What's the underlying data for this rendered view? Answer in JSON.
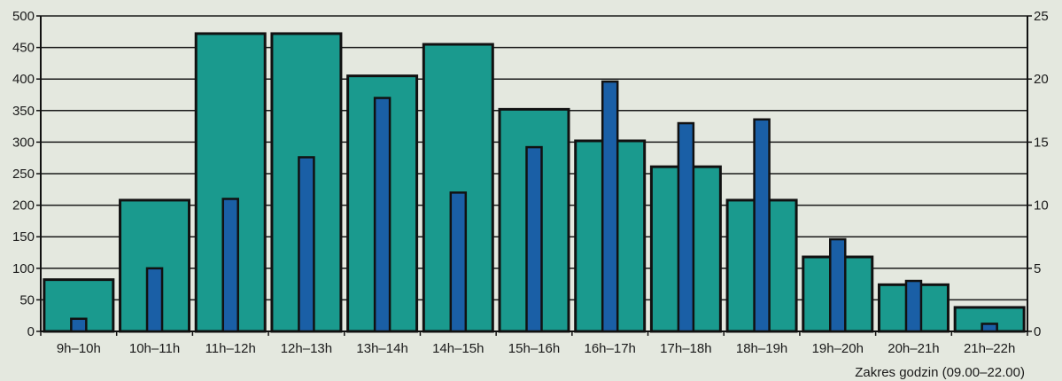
{
  "chart_data": {
    "type": "bar",
    "xlabel": "Zakres godzin (09.00–22.00)",
    "categories": [
      "9h–10h",
      "10h–11h",
      "11h–12h",
      "12h–13h",
      "13h–14h",
      "14h–15h",
      "15h–16h",
      "16h–17h",
      "17h–18h",
      "18h–19h",
      "19h–20h",
      "20h–21h",
      "21h–22h"
    ],
    "left_axis": {
      "min": 0,
      "max": 500,
      "ticks": [
        0,
        50,
        100,
        150,
        200,
        250,
        300,
        350,
        400,
        450,
        500
      ]
    },
    "right_axis": {
      "min": 0,
      "max": 25,
      "ticks": [
        0,
        5,
        10,
        15,
        20,
        25
      ]
    },
    "grid": true,
    "series": [
      {
        "axis": "left",
        "color": "#1a9a8e",
        "values": [
          82,
          208,
          472,
          472,
          405,
          455,
          352,
          302,
          261,
          208,
          118,
          74,
          38
        ]
      },
      {
        "axis": "right",
        "color": "#1a5fa6",
        "values": [
          1,
          5,
          10.5,
          13.8,
          18.5,
          11,
          14.6,
          19.8,
          16.5,
          16.8,
          7.3,
          4,
          0.6
        ]
      }
    ]
  }
}
